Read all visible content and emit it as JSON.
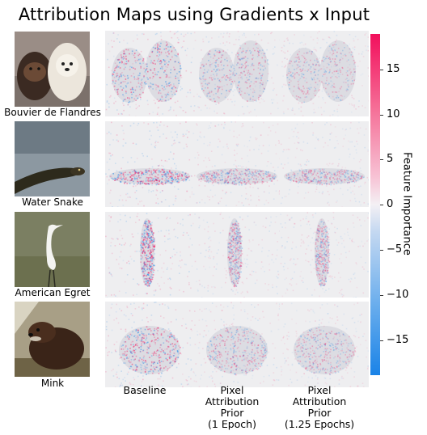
{
  "title": "Attribution Maps using Gradients x Input",
  "rows": [
    {
      "label": "Bouvier de Flandres",
      "top": 0
    },
    {
      "label": "Water Snake"
    },
    {
      "label": "American Egret"
    },
    {
      "label": "Mink"
    }
  ],
  "columns": [
    {
      "label": "Baseline"
    },
    {
      "label": "Pixel\nAttribution\nPrior\n(1 Epoch)"
    },
    {
      "label": "Pixel\nAttribution\nPrior\n(1.25 Epochs)"
    }
  ],
  "colorbar": {
    "label": "Feature Importance",
    "ticks": [
      "15",
      "10",
      "5",
      "0",
      "−5",
      "−10",
      "−15"
    ],
    "colors": {
      "positive": "#f20f5c",
      "neutral": "#f4f0f4",
      "negative": "#1a83e7"
    }
  }
}
